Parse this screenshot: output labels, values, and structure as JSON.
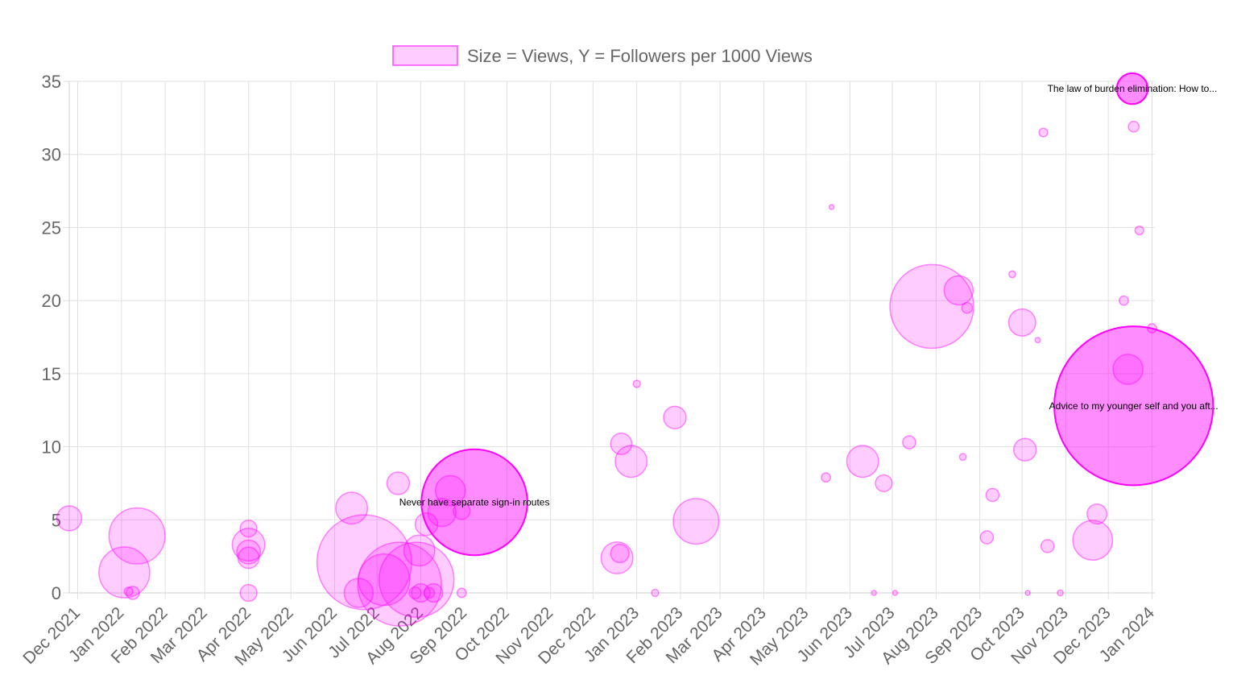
{
  "chart_data": {
    "type": "bubble",
    "legend": {
      "label": "Size = Views, Y = Followers per 1000 Views",
      "position": "top",
      "swatch_fill": "rgba(255,0,255,0.2)",
      "swatch_stroke": "rgba(255,0,255,0.5)"
    },
    "colors": {
      "bubble_fill": "rgba(255,0,255,0.2)",
      "bubble_stroke": "rgba(255,0,255,0.45)",
      "highlight_fill": "rgba(255,0,255,0.45)",
      "highlight_stroke": "#ff00ff"
    },
    "y_axis": {
      "min": 0,
      "max": 35,
      "ticks": [
        "0",
        "5",
        "10",
        "15",
        "20",
        "25",
        "30",
        "35"
      ],
      "grid": true
    },
    "x_axis": {
      "type": "time",
      "min": "2021-11-25",
      "max": "2024-01-03",
      "ticks": [
        {
          "date": "2021-12-01",
          "label": "Dec 2021"
        },
        {
          "date": "2022-01-01",
          "label": "Jan 2022"
        },
        {
          "date": "2022-02-01",
          "label": "Feb 2022"
        },
        {
          "date": "2022-03-01",
          "label": "Mar 2022"
        },
        {
          "date": "2022-04-01",
          "label": "Apr 2022"
        },
        {
          "date": "2022-05-01",
          "label": "May 2022"
        },
        {
          "date": "2022-06-01",
          "label": "Jun 2022"
        },
        {
          "date": "2022-07-01",
          "label": "Jul 2022"
        },
        {
          "date": "2022-08-01",
          "label": "Aug 2022"
        },
        {
          "date": "2022-09-01",
          "label": "Sep 2022"
        },
        {
          "date": "2022-10-01",
          "label": "Oct 2022"
        },
        {
          "date": "2022-11-01",
          "label": "Nov 2022"
        },
        {
          "date": "2022-12-01",
          "label": "Dec 2022"
        },
        {
          "date": "2023-01-01",
          "label": "Jan 2023"
        },
        {
          "date": "2023-02-01",
          "label": "Feb 2023"
        },
        {
          "date": "2023-03-01",
          "label": "Mar 2023"
        },
        {
          "date": "2023-04-01",
          "label": "Apr 2023"
        },
        {
          "date": "2023-05-01",
          "label": "May 2023"
        },
        {
          "date": "2023-06-01",
          "label": "Jun 2023"
        },
        {
          "date": "2023-07-01",
          "label": "Jul 2023"
        },
        {
          "date": "2023-08-01",
          "label": "Aug 2023"
        },
        {
          "date": "2023-09-01",
          "label": "Sep 2023"
        },
        {
          "date": "2023-10-01",
          "label": "Oct 2023"
        },
        {
          "date": "2023-11-01",
          "label": "Nov 2023"
        },
        {
          "date": "2023-12-01",
          "label": "Dec 2023"
        },
        {
          "date": "2024-01-01",
          "label": "Jan 2024"
        }
      ],
      "grid": true
    },
    "points": [
      {
        "date": "2021-11-25",
        "y": 5.1,
        "views": 1100
      },
      {
        "date": "2022-01-03",
        "y": 1.4,
        "views": 4600
      },
      {
        "date": "2022-01-06",
        "y": 0.1,
        "views": 130
      },
      {
        "date": "2022-01-09",
        "y": 0.0,
        "views": 300
      },
      {
        "date": "2022-01-12",
        "y": 3.9,
        "views": 5600
      },
      {
        "date": "2022-04-01",
        "y": 4.4,
        "views": 500
      },
      {
        "date": "2022-04-01",
        "y": 3.3,
        "views": 1900
      },
      {
        "date": "2022-04-01",
        "y": 2.8,
        "views": 1000
      },
      {
        "date": "2022-04-01",
        "y": 2.4,
        "views": 800
      },
      {
        "date": "2022-04-01",
        "y": 0.0,
        "views": 500
      },
      {
        "date": "2022-06-13",
        "y": 5.8,
        "views": 1800
      },
      {
        "date": "2022-06-18",
        "y": 0.0,
        "views": 1500
      },
      {
        "date": "2022-06-22",
        "y": 2.1,
        "views": 16000
      },
      {
        "date": "2022-07-06",
        "y": 0.9,
        "views": 4700
      },
      {
        "date": "2022-07-16",
        "y": 7.5,
        "views": 900
      },
      {
        "date": "2022-07-17",
        "y": 0.6,
        "views": 12500
      },
      {
        "date": "2022-07-28",
        "y": 0.0,
        "views": 250
      },
      {
        "date": "2022-07-29",
        "y": 0.9,
        "views": 10000
      },
      {
        "date": "2022-07-31",
        "y": 2.9,
        "views": 1700
      },
      {
        "date": "2022-08-01",
        "y": 0.0,
        "views": 600
      },
      {
        "date": "2022-08-05",
        "y": 4.7,
        "views": 900
      },
      {
        "date": "2022-08-07",
        "y": 0.0,
        "views": 200
      },
      {
        "date": "2022-08-10",
        "y": 0.0,
        "views": 600
      },
      {
        "date": "2022-08-16",
        "y": 5.5,
        "views": 1400
      },
      {
        "date": "2022-08-22",
        "y": 7.0,
        "views": 1600
      },
      {
        "date": "2022-08-30",
        "y": 5.6,
        "views": 500
      },
      {
        "date": "2022-08-30",
        "y": 0.0,
        "views": 150
      },
      {
        "date": "2022-09-08",
        "y": 6.2,
        "views": 20000,
        "label": "Never have separate sign-in routes",
        "highlight": true
      },
      {
        "date": "2022-12-18",
        "y": 2.4,
        "views": 1800
      },
      {
        "date": "2022-12-20",
        "y": 2.7,
        "views": 600
      },
      {
        "date": "2022-12-21",
        "y": 10.2,
        "views": 800
      },
      {
        "date": "2022-12-28",
        "y": 9.0,
        "views": 1800
      },
      {
        "date": "2023-01-01",
        "y": 14.3,
        "views": 90
      },
      {
        "date": "2023-01-14",
        "y": 0.0,
        "views": 90
      },
      {
        "date": "2023-01-28",
        "y": 12.0,
        "views": 900
      },
      {
        "date": "2023-02-12",
        "y": 4.9,
        "views": 3700
      },
      {
        "date": "2023-05-15",
        "y": 7.9,
        "views": 150
      },
      {
        "date": "2023-05-19",
        "y": 26.4,
        "views": 30
      },
      {
        "date": "2023-06-10",
        "y": 9.0,
        "views": 1800
      },
      {
        "date": "2023-06-18",
        "y": 0.0,
        "views": 40
      },
      {
        "date": "2023-06-25",
        "y": 7.5,
        "views": 500
      },
      {
        "date": "2023-07-03",
        "y": 0.0,
        "views": 30
      },
      {
        "date": "2023-07-13",
        "y": 10.3,
        "views": 300
      },
      {
        "date": "2023-07-29",
        "y": 19.6,
        "views": 12500
      },
      {
        "date": "2023-08-17",
        "y": 20.7,
        "views": 1500
      },
      {
        "date": "2023-08-20",
        "y": 9.3,
        "views": 80
      },
      {
        "date": "2023-08-23",
        "y": 19.5,
        "views": 200
      },
      {
        "date": "2023-09-06",
        "y": 3.8,
        "views": 300
      },
      {
        "date": "2023-09-10",
        "y": 6.7,
        "views": 300
      },
      {
        "date": "2023-09-24",
        "y": 21.8,
        "views": 80
      },
      {
        "date": "2023-10-01",
        "y": 18.5,
        "views": 1300
      },
      {
        "date": "2023-10-03",
        "y": 9.8,
        "views": 900
      },
      {
        "date": "2023-10-05",
        "y": 0.0,
        "views": 30
      },
      {
        "date": "2023-10-12",
        "y": 17.3,
        "views": 50
      },
      {
        "date": "2023-10-16",
        "y": 31.5,
        "views": 130
      },
      {
        "date": "2023-10-19",
        "y": 3.2,
        "views": 300
      },
      {
        "date": "2023-10-28",
        "y": 0.0,
        "views": 60
      },
      {
        "date": "2023-11-20",
        "y": 3.6,
        "views": 2800
      },
      {
        "date": "2023-11-23",
        "y": 5.4,
        "views": 700
      },
      {
        "date": "2023-12-12",
        "y": 20.0,
        "views": 150
      },
      {
        "date": "2023-12-15",
        "y": 15.3,
        "views": 1600
      },
      {
        "date": "2023-12-18",
        "y": 34.5,
        "views": 1700,
        "label": "The law of burden elimination: How to...",
        "highlight": true
      },
      {
        "date": "2023-12-19",
        "y": 31.9,
        "views": 200
      },
      {
        "date": "2023-12-19",
        "y": 12.8,
        "views": 45000,
        "label": "Advice to my younger self and you aft...",
        "highlight": true
      },
      {
        "date": "2023-12-23",
        "y": 24.8,
        "views": 130
      },
      {
        "date": "2024-01-01",
        "y": 18.1,
        "views": 150
      }
    ]
  }
}
